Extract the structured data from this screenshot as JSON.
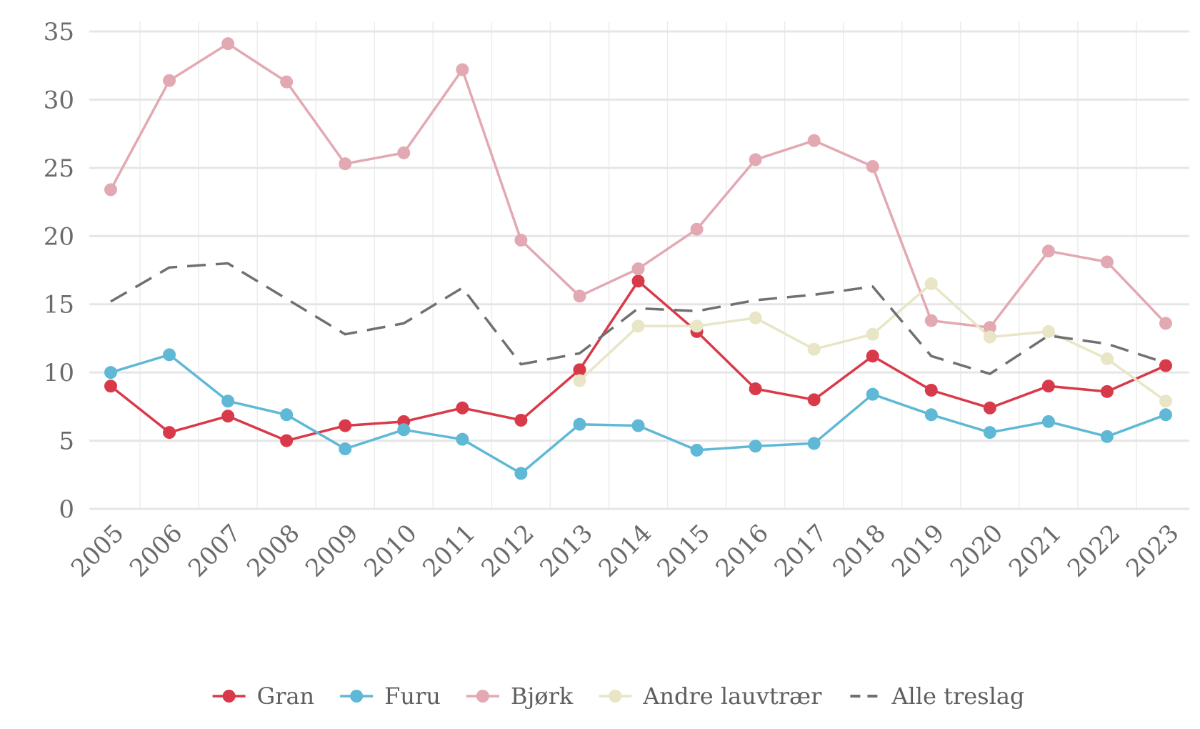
{
  "chart_data": {
    "type": "line",
    "title": "",
    "xlabel": "",
    "ylabel": "",
    "ylim": [
      0,
      35
    ],
    "yticks": [
      0,
      5,
      10,
      15,
      20,
      25,
      30,
      35
    ],
    "grid": true,
    "legend_position": "bottom",
    "x": [
      "2005",
      "2006",
      "2007",
      "2008",
      "2009",
      "2010",
      "2011",
      "2012",
      "2013",
      "2014",
      "2015",
      "2016",
      "2017",
      "2018",
      "2019",
      "2020",
      "2021",
      "2022",
      "2023"
    ],
    "series": [
      {
        "name": "Gran",
        "color": "#d93a49",
        "style": "solid-marker",
        "values": [
          9.0,
          5.6,
          6.8,
          5.0,
          6.1,
          6.4,
          7.4,
          6.5,
          10.2,
          16.7,
          13.0,
          8.8,
          8.0,
          11.2,
          8.7,
          7.4,
          9.0,
          8.6,
          10.5
        ]
      },
      {
        "name": "Furu",
        "color": "#5fb9d6",
        "style": "solid-marker",
        "values": [
          10.0,
          11.3,
          7.9,
          6.9,
          4.4,
          5.8,
          5.1,
          2.6,
          6.2,
          6.1,
          4.3,
          4.6,
          4.8,
          8.4,
          6.9,
          5.6,
          6.4,
          5.3,
          6.9
        ]
      },
      {
        "name": "Bjørk",
        "color": "#e3a9b3",
        "style": "solid-marker",
        "values": [
          23.4,
          31.4,
          34.1,
          31.3,
          25.3,
          26.1,
          32.2,
          19.7,
          15.6,
          17.6,
          20.5,
          25.6,
          27.0,
          25.1,
          13.8,
          13.3,
          18.9,
          18.1,
          13.6
        ]
      },
      {
        "name": "Andre lauvtrær",
        "color": "#e8e6c6",
        "style": "solid-marker",
        "values": [
          null,
          null,
          null,
          null,
          null,
          null,
          null,
          null,
          9.4,
          13.4,
          13.4,
          14.0,
          11.7,
          12.8,
          16.5,
          12.6,
          13.0,
          11.0,
          7.9
        ]
      },
      {
        "name": "Alle treslag",
        "color": "#707070",
        "style": "dashed",
        "values": [
          15.2,
          17.7,
          18.0,
          15.4,
          12.8,
          13.6,
          16.2,
          10.6,
          11.4,
          14.7,
          14.5,
          15.3,
          15.7,
          16.3,
          11.2,
          9.9,
          12.7,
          12.1,
          10.7
        ]
      }
    ]
  }
}
